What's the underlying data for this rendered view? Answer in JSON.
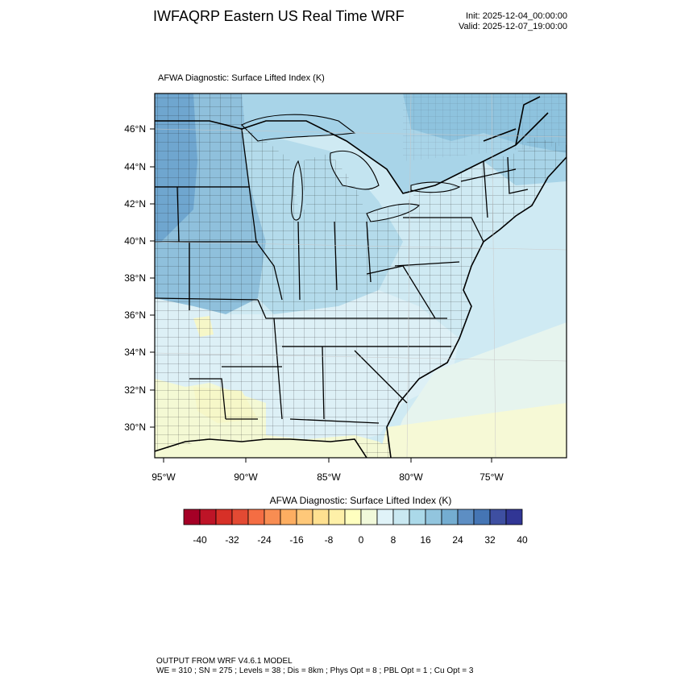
{
  "header": {
    "title": "IWFAQRP Eastern US Real Time WRF",
    "init": "Init: 2025-12-04_00:00:00",
    "valid": "Valid: 2025-12-07_19:00:00"
  },
  "map": {
    "field_title": "AFWA Diagnostic: Surface Lifted Index   (K)",
    "lat_labels": [
      "46°N",
      "44°N",
      "42°N",
      "40°N",
      "38°N",
      "36°N",
      "34°N",
      "32°N",
      "30°N"
    ],
    "lon_labels": [
      "95°W",
      "90°W",
      "85°W",
      "80°W",
      "75°W"
    ]
  },
  "colorbar": {
    "title": "AFWA Diagnostic: Surface Lifted Index  (K)",
    "colors": [
      "#a50026",
      "#be1427",
      "#d73027",
      "#e34a33",
      "#f46d43",
      "#f88d52",
      "#fdae61",
      "#fec879",
      "#fee090",
      "#fef0a8",
      "#ffffbf",
      "#f1f9da",
      "#e0f3f8",
      "#c9e8f1",
      "#abd9e9",
      "#92c5de",
      "#74add1",
      "#5d8ec3",
      "#4575b4",
      "#3e4fa1",
      "#313695"
    ],
    "labels": [
      "-40",
      "-32",
      "-24",
      "-16",
      "-8",
      "0",
      "8",
      "16",
      "24",
      "32",
      "40"
    ]
  },
  "footer": {
    "line1": "OUTPUT FROM WRF V4.6.1 MODEL",
    "line2": "WE = 310 ; SN = 275 ; Levels = 38 ; Dis = 8km ; Phys Opt = 8 ; PBL Opt = 1 ; Cu Opt = 3"
  }
}
